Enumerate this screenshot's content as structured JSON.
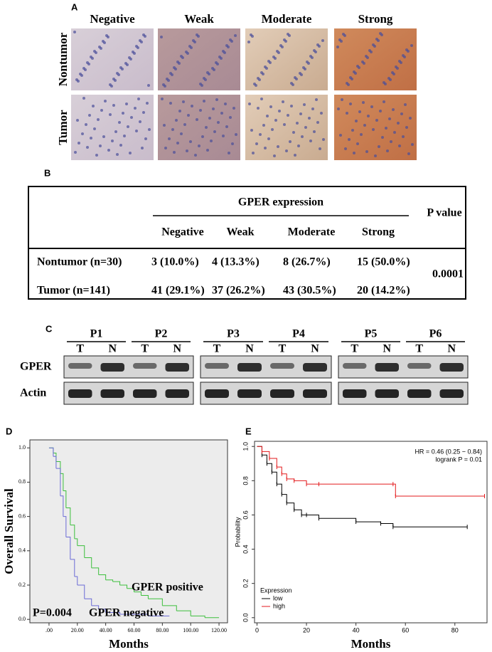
{
  "panel_a": {
    "letter": "A",
    "columns": [
      "Negative",
      "Weak",
      "Moderate",
      "Strong"
    ],
    "rows": [
      "Nontumor",
      "Tumor"
    ]
  },
  "table": {
    "letter": "B",
    "group_header": "GPER expression",
    "p_header": "P value",
    "columns": [
      "Negative",
      "Weak",
      "Moderate",
      "Strong"
    ],
    "rows": [
      [
        "Nontumor (n=30)",
        "3 (10.0%)",
        "4 (13.3%)",
        "8 (26.7%)",
        "15 (50.0%)"
      ],
      [
        "Tumor  (n=141)",
        "41 (29.1%)",
        "37 (26.2%)",
        "43 (30.5%)",
        "20 (14.2%)"
      ]
    ],
    "p_value": "0.0001"
  },
  "panel_c": {
    "letter": "C",
    "patients": [
      "P1",
      "P2",
      "P3",
      "P4",
      "P5",
      "P6"
    ],
    "lanes": [
      "T",
      "N"
    ],
    "proteins": [
      "GPER",
      "Actin"
    ]
  },
  "chart_data": [
    {
      "type": "step",
      "letter": "D",
      "xlabel": "Months",
      "ylabel": "Overall Survival",
      "background": "#ececec",
      "xlim": [
        -7,
        126
      ],
      "ylim": [
        -0.02,
        1.03
      ],
      "xticks": [
        {
          "value": 0,
          "label": ".00"
        },
        {
          "value": 20,
          "label": "20.00"
        },
        {
          "value": 40,
          "label": "40.00"
        },
        {
          "value": 60,
          "label": "60.00"
        },
        {
          "value": 80,
          "label": "80.00"
        },
        {
          "value": 100,
          "label": "100.00"
        },
        {
          "value": 120,
          "label": "120.00"
        }
      ],
      "yticks": [
        {
          "value": 0,
          "label": "0.0"
        },
        0.2,
        0.4,
        0.6,
        0.8,
        {
          "value": 1,
          "label": "1.0"
        }
      ],
      "annotations": [
        "P=0.004",
        "GPER positive",
        "GPER negative"
      ],
      "series": [
        {
          "name": "GPER positive",
          "color": "#3cbf3c",
          "x": [
            0,
            3,
            5,
            8,
            10,
            12,
            15,
            18,
            20,
            25,
            30,
            35,
            40,
            45,
            50,
            55,
            60,
            65,
            70,
            80,
            90,
            100,
            110,
            120
          ],
          "values": [
            1,
            0.97,
            0.92,
            0.85,
            0.75,
            0.65,
            0.55,
            0.47,
            0.43,
            0.36,
            0.3,
            0.26,
            0.23,
            0.22,
            0.2,
            0.18,
            0.16,
            0.14,
            0.12,
            0.08,
            0.05,
            0.02,
            0.01,
            0.01
          ]
        },
        {
          "name": "GPER negative",
          "color": "#6b6bd6",
          "x": [
            0,
            3,
            5,
            8,
            10,
            12,
            15,
            18,
            20,
            25,
            30,
            35,
            40,
            50,
            60,
            70,
            85
          ],
          "values": [
            1,
            0.95,
            0.88,
            0.72,
            0.6,
            0.48,
            0.35,
            0.25,
            0.2,
            0.12,
            0.08,
            0.06,
            0.04,
            0.03,
            0.03,
            0.02,
            0.02
          ]
        }
      ]
    },
    {
      "type": "step",
      "letter": "E",
      "xlabel": "Months",
      "ylabel": "Probability",
      "background": "#ffffff",
      "xlim": [
        -1,
        93
      ],
      "ylim": [
        -0.03,
        1.03
      ],
      "xticks": [
        0,
        20,
        40,
        60,
        80
      ],
      "yticks": [
        {
          "value": 0,
          "label": "0.0"
        },
        0.2,
        0.4,
        0.6,
        0.8,
        {
          "value": 1,
          "label": "1.0"
        }
      ],
      "annotations": [
        "HR = 0.46 (0.25 − 0.84)",
        "logrank P = 0.01"
      ],
      "legend_title": "Expression",
      "legend": "lower left",
      "series": [
        {
          "name": "low",
          "color": "#000000",
          "x": [
            0,
            2,
            4,
            6,
            8,
            10,
            12,
            15,
            18,
            20,
            25,
            40,
            50,
            55,
            85
          ],
          "values": [
            1,
            0.95,
            0.9,
            0.85,
            0.78,
            0.72,
            0.67,
            0.63,
            0.6,
            0.6,
            0.58,
            0.56,
            0.55,
            0.53,
            0.53
          ]
        },
        {
          "name": "high",
          "color": "#e31a1c",
          "x": [
            0,
            2,
            5,
            8,
            10,
            12,
            15,
            20,
            25,
            55,
            56,
            92
          ],
          "values": [
            1,
            0.97,
            0.93,
            0.88,
            0.84,
            0.81,
            0.8,
            0.78,
            0.78,
            0.78,
            0.71,
            0.71
          ]
        }
      ]
    }
  ]
}
